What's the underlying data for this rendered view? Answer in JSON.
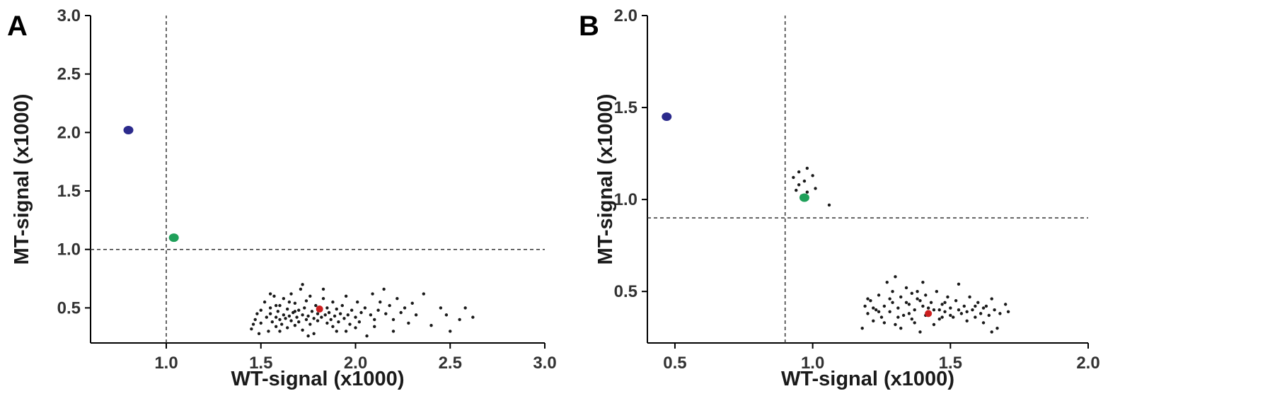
{
  "colors": {
    "background": "#ffffff",
    "axis": "#000000",
    "cloud_points": "#1a1a1a",
    "reference_line": "#333333"
  },
  "chart_data": [
    {
      "panel": "A",
      "type": "scatter",
      "xlabel": "WT-signal (x1000)",
      "ylabel": "MT-signal (x1000)",
      "xlim": [
        0.6,
        3.0
      ],
      "ylim": [
        0.2,
        3.0
      ],
      "xticks": [
        1.0,
        1.5,
        2.0,
        2.5,
        3.0
      ],
      "yticks": [
        0.5,
        1.0,
        1.5,
        2.0,
        2.5,
        3.0
      ],
      "xtick_labels": [
        "1.0",
        "1.5",
        "2.0",
        "2.5",
        "3.0"
      ],
      "ytick_labels": [
        "0.5",
        "1.0",
        "1.5",
        "2.0",
        "2.5",
        "3.0"
      ],
      "grid": false,
      "threshold_x": 1.0,
      "threshold_y": 1.0,
      "highlighted_points": [
        {
          "color": "#2b2a8c",
          "x": 0.8,
          "y": 2.02
        },
        {
          "color": "#1fa05a",
          "x": 1.04,
          "y": 1.1
        },
        {
          "color": "#cc1f1f",
          "x": 1.81,
          "y": 0.49
        }
      ],
      "cloud": {
        "color": "#1a1a1a",
        "points": [
          [
            1.45,
            0.32
          ],
          [
            1.47,
            0.4
          ],
          [
            1.48,
            0.45
          ],
          [
            1.5,
            0.48
          ],
          [
            1.5,
            0.37
          ],
          [
            1.52,
            0.55
          ],
          [
            1.53,
            0.42
          ],
          [
            1.54,
            0.3
          ],
          [
            1.55,
            0.5
          ],
          [
            1.55,
            0.45
          ],
          [
            1.56,
            0.38
          ],
          [
            1.57,
            0.6
          ],
          [
            1.58,
            0.42
          ],
          [
            1.58,
            0.34
          ],
          [
            1.59,
            0.47
          ],
          [
            1.6,
            0.52
          ],
          [
            1.6,
            0.4
          ],
          [
            1.61,
            0.36
          ],
          [
            1.62,
            0.44
          ],
          [
            1.62,
            0.58
          ],
          [
            1.63,
            0.41
          ],
          [
            1.64,
            0.49
          ],
          [
            1.64,
            0.33
          ],
          [
            1.65,
            0.43
          ],
          [
            1.66,
            0.62
          ],
          [
            1.66,
            0.39
          ],
          [
            1.67,
            0.46
          ],
          [
            1.68,
            0.35
          ],
          [
            1.68,
            0.54
          ],
          [
            1.69,
            0.42
          ],
          [
            1.7,
            0.48
          ],
          [
            1.7,
            0.38
          ],
          [
            1.71,
            0.66
          ],
          [
            1.72,
            0.44
          ],
          [
            1.72,
            0.31
          ],
          [
            1.73,
            0.5
          ],
          [
            1.74,
            0.4
          ],
          [
            1.74,
            0.56
          ],
          [
            1.75,
            0.43
          ],
          [
            1.76,
            0.36
          ],
          [
            1.76,
            0.6
          ],
          [
            1.77,
            0.47
          ],
          [
            1.78,
            0.41
          ],
          [
            1.78,
            0.28
          ],
          [
            1.79,
            0.52
          ],
          [
            1.8,
            0.39
          ],
          [
            1.8,
            0.45
          ],
          [
            1.82,
            0.42
          ],
          [
            1.83,
            0.58
          ],
          [
            1.84,
            0.44
          ],
          [
            1.85,
            0.37
          ],
          [
            1.85,
            0.5
          ],
          [
            1.86,
            0.46
          ],
          [
            1.87,
            0.4
          ],
          [
            1.88,
            0.55
          ],
          [
            1.88,
            0.34
          ],
          [
            1.89,
            0.43
          ],
          [
            1.9,
            0.49
          ],
          [
            1.91,
            0.38
          ],
          [
            1.92,
            0.45
          ],
          [
            1.93,
            0.52
          ],
          [
            1.94,
            0.41
          ],
          [
            1.95,
            0.6
          ],
          [
            1.96,
            0.44
          ],
          [
            1.97,
            0.36
          ],
          [
            1.98,
            0.48
          ],
          [
            2.0,
            0.42
          ],
          [
            2.01,
            0.55
          ],
          [
            2.02,
            0.38
          ],
          [
            2.03,
            0.46
          ],
          [
            2.05,
            0.5
          ],
          [
            2.06,
            0.26
          ],
          [
            2.08,
            0.44
          ],
          [
            2.09,
            0.62
          ],
          [
            2.1,
            0.4
          ],
          [
            2.12,
            0.48
          ],
          [
            2.13,
            0.55
          ],
          [
            2.15,
            0.66
          ],
          [
            2.16,
            0.45
          ],
          [
            2.18,
            0.52
          ],
          [
            2.2,
            0.4
          ],
          [
            2.22,
            0.58
          ],
          [
            2.24,
            0.46
          ],
          [
            2.26,
            0.5
          ],
          [
            2.28,
            0.37
          ],
          [
            2.3,
            0.54
          ],
          [
            2.32,
            0.44
          ],
          [
            2.36,
            0.62
          ],
          [
            2.4,
            0.35
          ],
          [
            2.45,
            0.5
          ],
          [
            2.48,
            0.44
          ],
          [
            2.55,
            0.4
          ],
          [
            2.58,
            0.5
          ],
          [
            2.62,
            0.42
          ],
          [
            2.5,
            0.3
          ],
          [
            1.49,
            0.28
          ],
          [
            1.46,
            0.36
          ],
          [
            1.6,
            0.3
          ],
          [
            1.75,
            0.26
          ],
          [
            1.9,
            0.3
          ],
          [
            2.0,
            0.33
          ],
          [
            1.55,
            0.62
          ],
          [
            1.65,
            0.55
          ],
          [
            1.72,
            0.7
          ],
          [
            1.83,
            0.66
          ],
          [
            1.95,
            0.3
          ],
          [
            2.2,
            0.3
          ],
          [
            2.1,
            0.34
          ],
          [
            1.58,
            0.52
          ],
          [
            1.68,
            0.47
          ]
        ]
      }
    },
    {
      "panel": "B",
      "type": "scatter",
      "xlabel": "WT-signal (x1000)",
      "ylabel": "MT-signal (x1000)",
      "xlim": [
        0.4,
        2.0
      ],
      "ylim": [
        0.22,
        2.0
      ],
      "xticks": [
        0.5,
        1.0,
        1.5,
        2.0
      ],
      "yticks": [
        0.5,
        1.0,
        1.5,
        2.0
      ],
      "xtick_labels": [
        "0.5",
        "1.0",
        "1.5",
        "2.0"
      ],
      "ytick_labels": [
        "0.5",
        "1.0",
        "1.5",
        "2.0"
      ],
      "grid": false,
      "threshold_x": 0.9,
      "threshold_y": 0.9,
      "highlighted_points": [
        {
          "color": "#2b2a8c",
          "x": 0.47,
          "y": 1.45
        },
        {
          "color": "#1fa05a",
          "x": 0.97,
          "y": 1.01
        },
        {
          "color": "#cc1f1f",
          "x": 1.42,
          "y": 0.38
        }
      ],
      "cloud": {
        "color": "#1a1a1a",
        "points": [
          [
            0.93,
            1.12
          ],
          [
            0.94,
            1.05
          ],
          [
            0.95,
            1.15
          ],
          [
            0.95,
            1.08
          ],
          [
            0.96,
            1.02
          ],
          [
            0.97,
            1.1
          ],
          [
            0.98,
            1.04
          ],
          [
            0.98,
            1.17
          ],
          [
            1.0,
            1.13
          ],
          [
            1.01,
            1.06
          ],
          [
            1.06,
            0.97
          ],
          [
            1.18,
            0.3
          ],
          [
            1.19,
            0.42
          ],
          [
            1.2,
            0.38
          ],
          [
            1.21,
            0.45
          ],
          [
            1.22,
            0.34
          ],
          [
            1.23,
            0.4
          ],
          [
            1.24,
            0.48
          ],
          [
            1.25,
            0.36
          ],
          [
            1.26,
            0.42
          ],
          [
            1.27,
            0.55
          ],
          [
            1.28,
            0.39
          ],
          [
            1.29,
            0.44
          ],
          [
            1.3,
            0.32
          ],
          [
            1.3,
            0.58
          ],
          [
            1.31,
            0.41
          ],
          [
            1.32,
            0.47
          ],
          [
            1.33,
            0.37
          ],
          [
            1.34,
            0.52
          ],
          [
            1.35,
            0.43
          ],
          [
            1.36,
            0.35
          ],
          [
            1.36,
            0.49
          ],
          [
            1.37,
            0.4
          ],
          [
            1.38,
            0.46
          ],
          [
            1.39,
            0.28
          ],
          [
            1.4,
            0.42
          ],
          [
            1.4,
            0.55
          ],
          [
            1.41,
            0.37
          ],
          [
            1.43,
            0.44
          ],
          [
            1.44,
            0.4
          ],
          [
            1.45,
            0.5
          ],
          [
            1.46,
            0.35
          ],
          [
            1.47,
            0.43
          ],
          [
            1.48,
            0.39
          ],
          [
            1.49,
            0.47
          ],
          [
            1.5,
            0.41
          ],
          [
            1.51,
            0.36
          ],
          [
            1.52,
            0.45
          ],
          [
            1.53,
            0.54
          ],
          [
            1.54,
            0.38
          ],
          [
            1.55,
            0.42
          ],
          [
            1.56,
            0.34
          ],
          [
            1.57,
            0.47
          ],
          [
            1.58,
            0.4
          ],
          [
            1.59,
            0.36
          ],
          [
            1.6,
            0.44
          ],
          [
            1.61,
            0.38
          ],
          [
            1.62,
            0.33
          ],
          [
            1.63,
            0.42
          ],
          [
            1.64,
            0.37
          ],
          [
            1.65,
            0.46
          ],
          [
            1.66,
            0.4
          ],
          [
            1.67,
            0.3
          ],
          [
            1.68,
            0.38
          ],
          [
            1.7,
            0.43
          ],
          [
            1.71,
            0.39
          ],
          [
            1.65,
            0.28
          ],
          [
            1.26,
            0.33
          ],
          [
            1.32,
            0.3
          ],
          [
            1.38,
            0.5
          ],
          [
            1.44,
            0.32
          ],
          [
            1.2,
            0.46
          ],
          [
            1.29,
            0.5
          ],
          [
            1.35,
            0.38
          ],
          [
            1.41,
            0.48
          ],
          [
            1.47,
            0.36
          ],
          [
            1.53,
            0.4
          ],
          [
            1.59,
            0.42
          ],
          [
            1.24,
            0.39
          ],
          [
            1.34,
            0.44
          ],
          [
            1.5,
            0.37
          ],
          [
            1.22,
            0.41
          ],
          [
            1.28,
            0.46
          ],
          [
            1.37,
            0.33
          ],
          [
            1.42,
            0.41
          ],
          [
            1.48,
            0.44
          ],
          [
            1.56,
            0.39
          ],
          [
            1.62,
            0.41
          ],
          [
            1.31,
            0.36
          ],
          [
            1.39,
            0.45
          ],
          [
            1.46,
            0.4
          ]
        ]
      }
    }
  ]
}
